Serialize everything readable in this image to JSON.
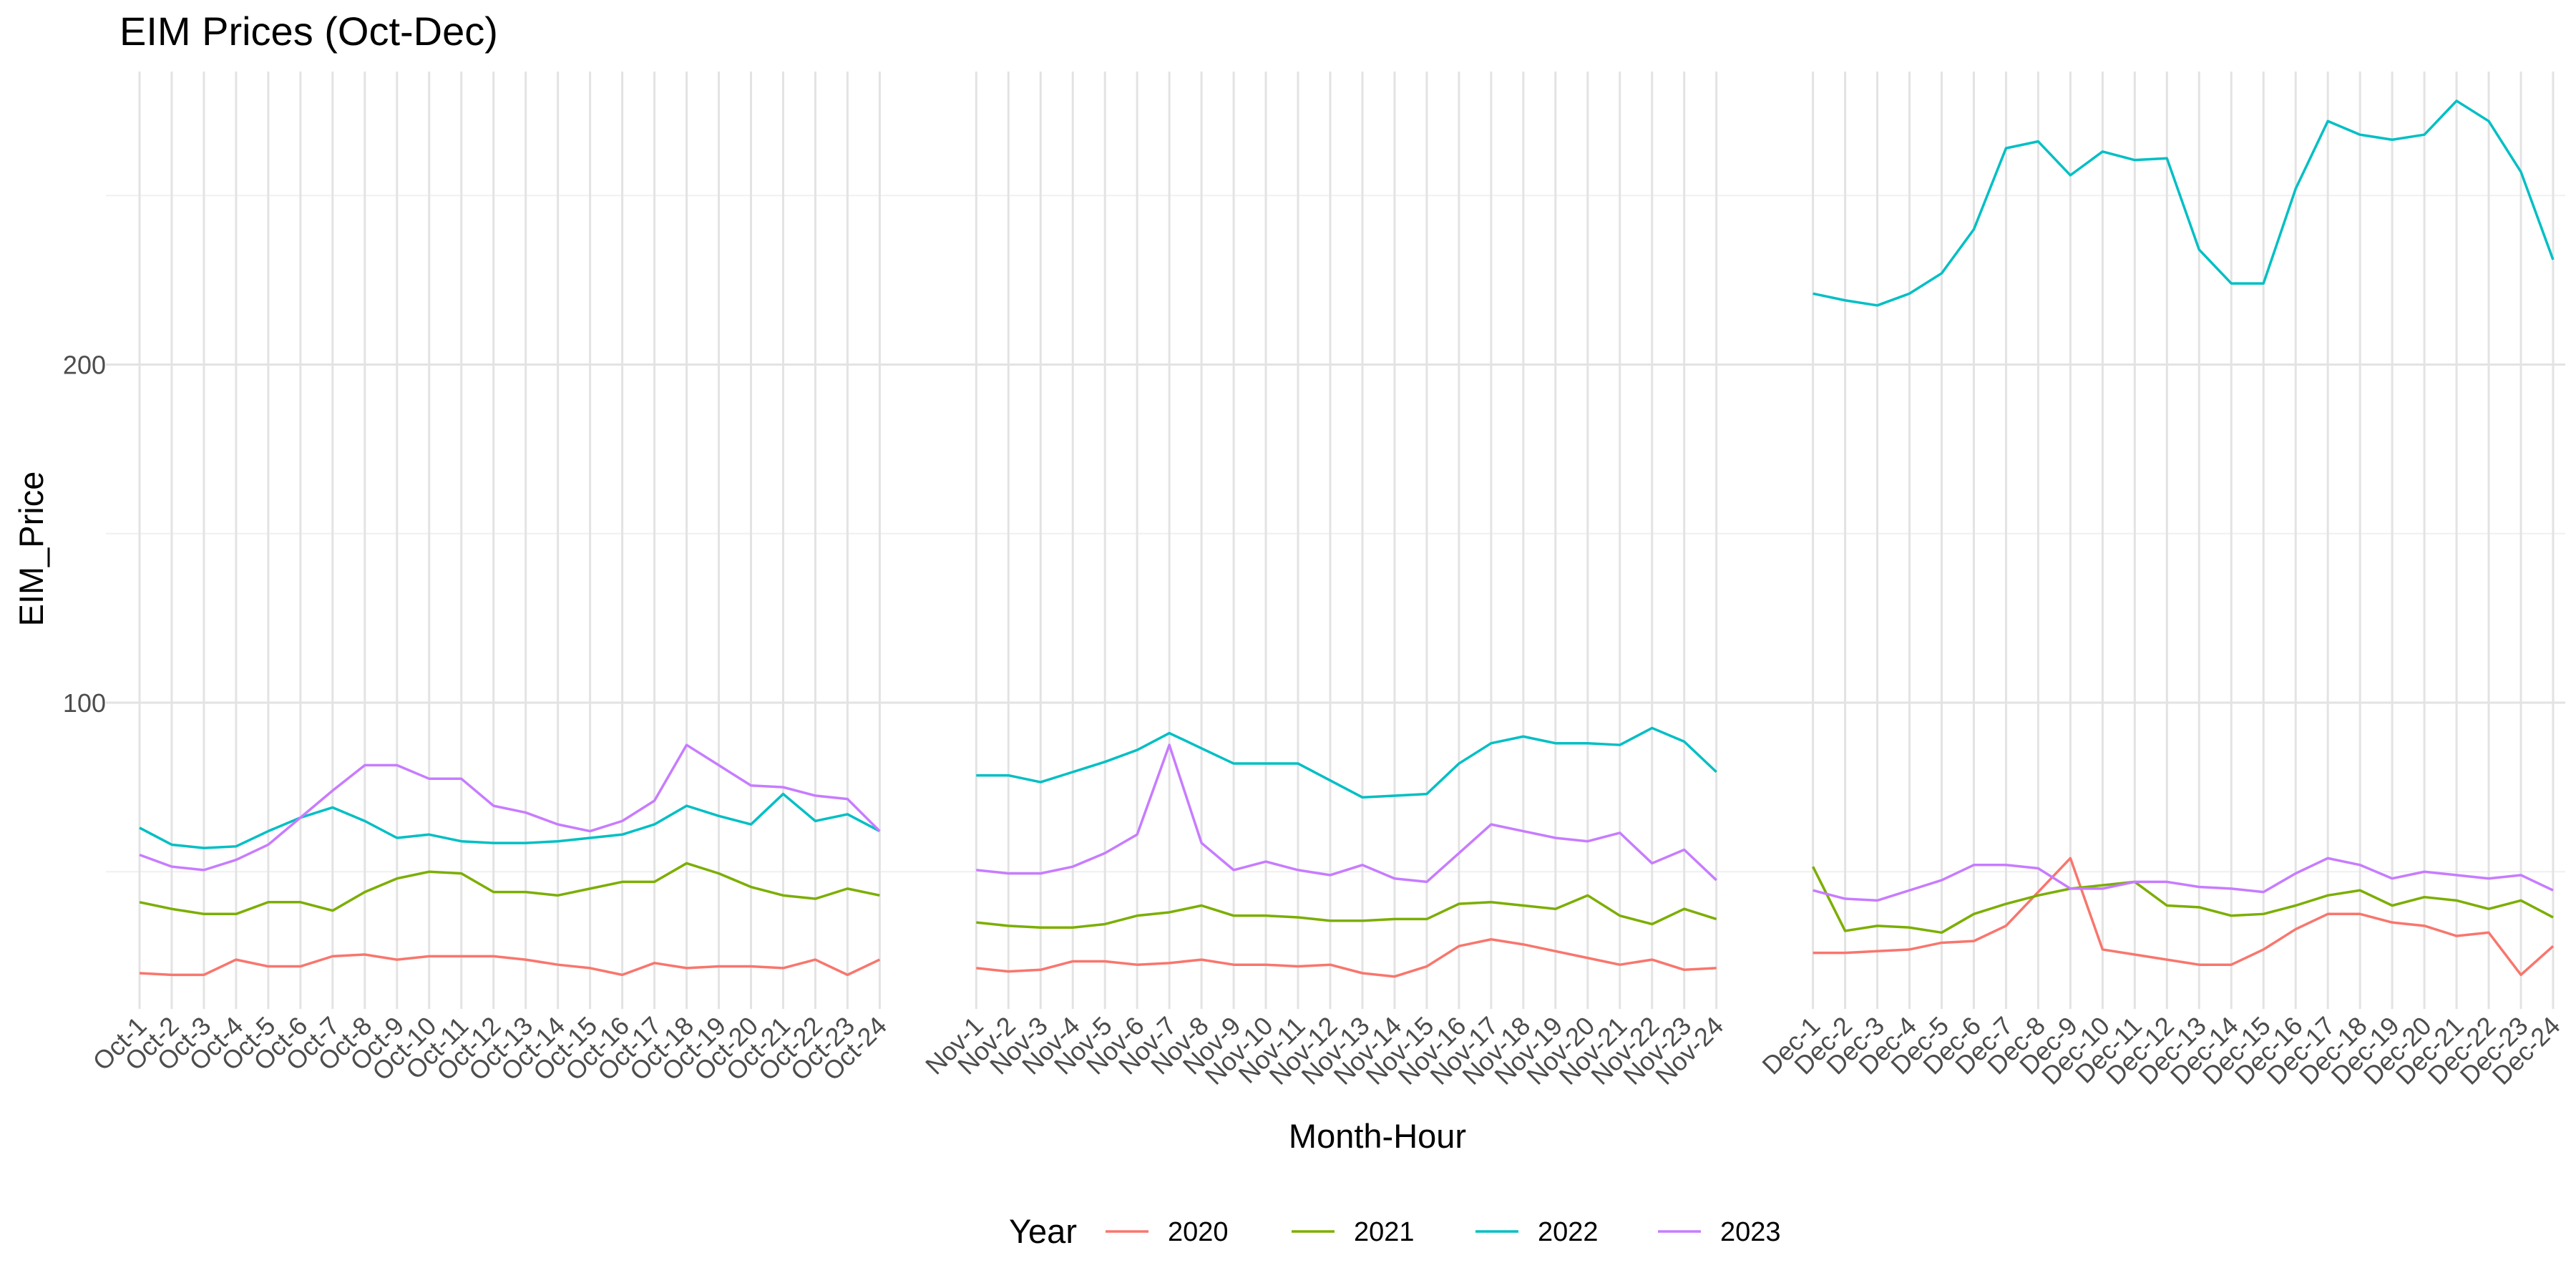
{
  "chart_data": {
    "type": "line",
    "title": "EIM Prices (Oct-Dec)",
    "xlabel": "Month-Hour",
    "ylabel": "EIM_Price",
    "ylim": [
      0,
      290
    ],
    "yticks": [
      100,
      200
    ],
    "grid": true,
    "legend": {
      "title": "Year",
      "position": "bottom"
    },
    "months": [
      "Oct",
      "Nov",
      "Dec"
    ],
    "series": [
      {
        "name": "2020",
        "color": "#F8766D",
        "values": [
          [
            20,
            19.5,
            19.5,
            24,
            22,
            22,
            25,
            25.5,
            24,
            25,
            25,
            25,
            24,
            22.5,
            21.5,
            19.5,
            23,
            21.5,
            22,
            22,
            21.5,
            24,
            19.5,
            24
          ],
          [
            21.5,
            20.5,
            21,
            23.5,
            23.5,
            22.5,
            23,
            24,
            22.5,
            22.5,
            22,
            22.5,
            20,
            19,
            22,
            28,
            30,
            28.5,
            26.5,
            24.5,
            22.5,
            24,
            21,
            21.5
          ],
          [
            26,
            26,
            26.5,
            27,
            29,
            29.5,
            34,
            44,
            54,
            27,
            25.5,
            24,
            22.5,
            22.5,
            27,
            33,
            37.5,
            37.5,
            35,
            34,
            31,
            32,
            19.5,
            28
          ]
        ]
      },
      {
        "name": "2021",
        "color": "#7CAE00",
        "values": [
          [
            41,
            39,
            37.5,
            37.5,
            41,
            41,
            38.5,
            44,
            48,
            50,
            49.5,
            44,
            44,
            43,
            45,
            47,
            47,
            52.5,
            49.5,
            45.5,
            43,
            42,
            45,
            43
          ],
          [
            35,
            34,
            33.5,
            33.5,
            34.5,
            37,
            38,
            40,
            37,
            37,
            36.5,
            35.5,
            35.5,
            36,
            36,
            40.5,
            41,
            40,
            39,
            43,
            37,
            34.5,
            39,
            36
          ],
          [
            51.5,
            32.5,
            34,
            33.5,
            32,
            37.5,
            40.5,
            43,
            45,
            46,
            47,
            40,
            39.5,
            37,
            37.5,
            40,
            43,
            44.5,
            40,
            42.5,
            41.5,
            39,
            41.5,
            36.5
          ]
        ]
      },
      {
        "name": "2022",
        "color": "#00BFC4",
        "values": [
          [
            63,
            58,
            57,
            57.5,
            62,
            66,
            69,
            65,
            60,
            61,
            59,
            58.5,
            58.5,
            59,
            60,
            61,
            64,
            69.5,
            66.5,
            64,
            73,
            65,
            67,
            62
          ],
          [
            78.5,
            78.5,
            76.5,
            79.5,
            82.5,
            86,
            91,
            86.5,
            82,
            82,
            82,
            77,
            72,
            72.5,
            73,
            82,
            88,
            90,
            88,
            88,
            87.5,
            92.5,
            88.5,
            79.5
          ],
          [
            221,
            219,
            217.5,
            221,
            227,
            240,
            264,
            266,
            256,
            263,
            260.5,
            261,
            234,
            224,
            224,
            252,
            272,
            268,
            266.5,
            268,
            278,
            272,
            257,
            231
          ]
        ]
      },
      {
        "name": "2023",
        "color": "#C77CFF",
        "values": [
          [
            55,
            51.5,
            50.5,
            53.5,
            58,
            66,
            74,
            81.5,
            81.5,
            77.5,
            77.5,
            69.5,
            67.5,
            64,
            62,
            65,
            71,
            87.5,
            81.5,
            75.5,
            75,
            72.5,
            71.5,
            62
          ],
          [
            50.5,
            49.5,
            49.5,
            51.5,
            55.5,
            61,
            87.5,
            58.5,
            50.5,
            53,
            50.5,
            49,
            52,
            48,
            47,
            55.5,
            64,
            62,
            60,
            59,
            61.5,
            52.5,
            56.5,
            47.5
          ],
          [
            44.5,
            42,
            41.5,
            44.5,
            47.5,
            52,
            52,
            51,
            45,
            45,
            47,
            47,
            45.5,
            45,
            44,
            49.5,
            54,
            52,
            48,
            50,
            49,
            48,
            49,
            44.5
          ]
        ]
      }
    ]
  }
}
